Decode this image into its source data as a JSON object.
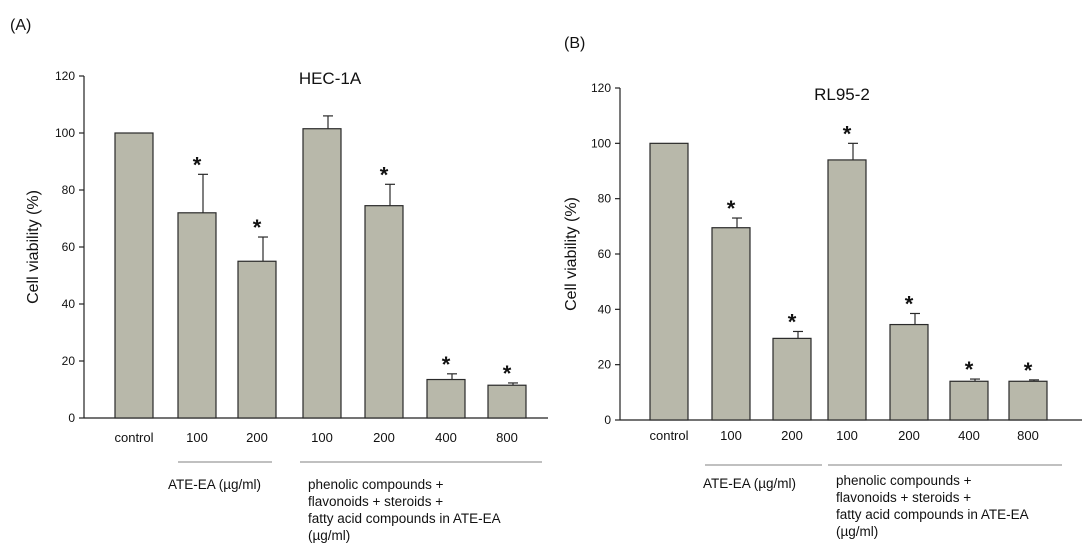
{
  "chart_data": [
    {
      "type": "bar",
      "panel_label": "(A)",
      "title": "HEC-1A",
      "ylabel": "Cell viability (%)",
      "ylim": [
        0,
        120
      ],
      "yticks": [
        "0",
        "20",
        "40",
        "60",
        "80",
        "100",
        "120"
      ],
      "categories": [
        "control",
        "100",
        "200",
        "100",
        "200",
        "400",
        "800"
      ],
      "values": [
        100,
        72,
        55,
        101.5,
        74.5,
        13.5,
        11.5
      ],
      "errors": [
        0,
        13.5,
        8.5,
        4.5,
        7.5,
        2,
        0.8
      ],
      "significant": [
        "",
        "*",
        "*",
        "",
        "*",
        "*",
        "*"
      ],
      "group_labels": [
        {
          "lines": [
            "ATE-EA  (µg/ml)"
          ]
        },
        {
          "lines": [
            "phenolic compounds +",
            "flavonoids + steroids +",
            "fatty acid compounds in ATE-EA",
            "(µg/ml)"
          ]
        }
      ],
      "bar_color": "#b8b8aa"
    },
    {
      "type": "bar",
      "panel_label": "(B)",
      "title": "RL95-2",
      "ylabel": "Cell viability (%)",
      "ylim": [
        0,
        120
      ],
      "yticks": [
        "0",
        "20",
        "40",
        "60",
        "80",
        "100",
        "120"
      ],
      "categories": [
        "control",
        "100",
        "200",
        "100",
        "200",
        "400",
        "800"
      ],
      "values": [
        100,
        69.5,
        29.5,
        94,
        34.5,
        14,
        14
      ],
      "errors": [
        0,
        3.5,
        2.5,
        6,
        4,
        0.8,
        0.5
      ],
      "significant": [
        "",
        "*",
        "*",
        "*",
        "*",
        "*",
        "*"
      ],
      "group_labels": [
        {
          "lines": [
            "ATE-EA  (µg/ml)"
          ]
        },
        {
          "lines": [
            "phenolic compounds +",
            "flavonoids + steroids +",
            "fatty acid compounds in ATE-EA",
            "(µg/ml)"
          ]
        }
      ],
      "bar_color": "#b8b8aa"
    }
  ]
}
